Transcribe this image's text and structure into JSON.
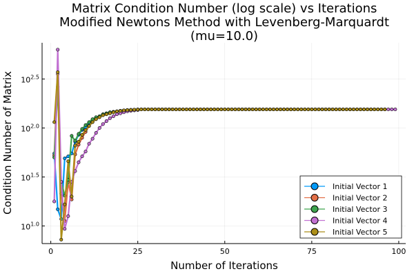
{
  "chart_data": {
    "type": "line",
    "title_lines": [
      "Matrix Condition Number (log scale) vs Iterations",
      "Modified Newtons Method with Levenberg-Marquardt",
      "(mu=10.0)"
    ],
    "xlabel": "Number of Iterations",
    "ylabel": "Condition Number of Matrix",
    "y_scale": "log10",
    "xlim": [
      -2.5,
      102
    ],
    "ylim_log10": [
      0.82,
      2.87
    ],
    "x_ticks": [
      0,
      25,
      50,
      75,
      100
    ],
    "y_ticks_log10": [
      1.0,
      1.5,
      2.0,
      2.5
    ],
    "y_tick_base": "10",
    "y_tick_exponents": [
      "1.0",
      "1.5",
      "2.0",
      "2.5"
    ],
    "grid": true,
    "legend_position": "bottom-right",
    "plateau_log10": 2.19,
    "series": [
      {
        "name": "Initial Vector 1",
        "color": "#009AFA",
        "x_start": 1,
        "head_log10": [
          1.74,
          1.17,
          1.07,
          1.69,
          1.71,
          1.74,
          1.86,
          1.93,
          1.98,
          2.01,
          2.05,
          2.08,
          2.1,
          2.12,
          2.14,
          2.15,
          2.16,
          2.165,
          2.17,
          2.175,
          2.18,
          2.183,
          2.185,
          2.187,
          2.188
        ],
        "end_x": 96
      },
      {
        "name": "Initial Vector 2",
        "color": "#E36F47",
        "x_start": 1,
        "head_log10": [
          1.72,
          2.55,
          1.33,
          1.05,
          1.45,
          1.27,
          1.73,
          1.83,
          1.9,
          1.96,
          2.02,
          2.06,
          2.09,
          2.11,
          2.13,
          2.14,
          2.15,
          2.16,
          2.17,
          2.175,
          2.18,
          2.183,
          2.185,
          2.187,
          2.188
        ],
        "end_x": 96
      },
      {
        "name": "Initial Vector 3",
        "color": "#3EA44E",
        "x_start": 1,
        "head_log10": [
          1.7,
          2.42,
          1.45,
          1.31,
          1.47,
          1.92,
          1.87,
          1.94,
          1.99,
          2.03,
          2.06,
          2.09,
          2.11,
          2.12,
          2.14,
          2.15,
          2.16,
          2.165,
          2.17,
          2.175,
          2.18,
          2.183,
          2.185,
          2.187,
          2.188
        ],
        "end_x": 96
      },
      {
        "name": "Initial Vector 4",
        "color": "#C271D2",
        "x_start": 1,
        "head_log10": [
          1.25,
          2.8,
          1.45,
          0.97,
          1.1,
          1.45,
          1.56,
          1.65,
          1.71,
          1.76,
          1.84,
          1.89,
          1.95,
          2.0,
          2.04,
          2.07,
          2.1,
          2.12,
          2.14,
          2.15,
          2.16,
          2.17,
          2.175,
          2.18,
          2.183
        ],
        "end_x": 99
      },
      {
        "name": "Initial Vector 5",
        "color": "#AC8E18",
        "x_start": 1,
        "head_log10": [
          2.06,
          2.57,
          0.86,
          1.22,
          1.66,
          1.3,
          1.82,
          1.86,
          1.93,
          1.98,
          2.02,
          2.06,
          2.09,
          2.11,
          2.13,
          2.14,
          2.15,
          2.16,
          2.17,
          2.175,
          2.18,
          2.183,
          2.185,
          2.187,
          2.188
        ],
        "end_x": 96
      }
    ]
  }
}
